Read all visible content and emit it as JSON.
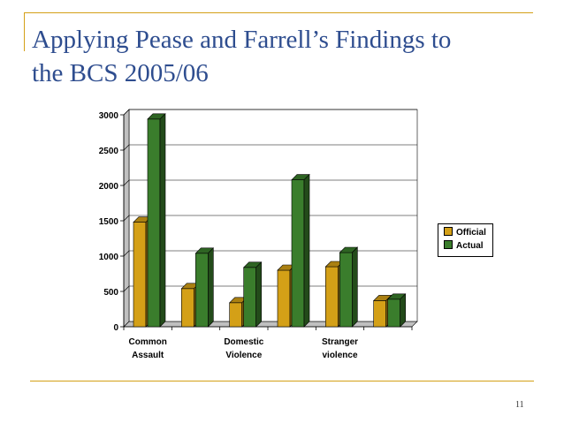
{
  "slide": {
    "title_line1": "Applying Pease and Farrell’s Findings to",
    "title_line2": "the BCS 2005/06",
    "page_number": "11"
  },
  "colors": {
    "accent_line": "#d4a017",
    "title": "#2e4d8f",
    "official": "#d4a017",
    "actual": "#3a7d2c"
  },
  "chart_data": {
    "type": "bar",
    "style": "3d-clustered",
    "categories": [
      "Common Assault",
      "",
      "Domestic Violence",
      "",
      "Stranger violence",
      ""
    ],
    "category_label_lines": [
      [
        "Common",
        "Assault"
      ],
      [],
      [
        "Domestic",
        "Violence"
      ],
      [],
      [
        "Stranger",
        "violence"
      ],
      []
    ],
    "series": [
      {
        "name": "Official",
        "values": [
          1480,
          540,
          340,
          800,
          850,
          370
        ]
      },
      {
        "name": "Actual",
        "values": [
          2940,
          1040,
          840,
          2080,
          1050,
          390
        ]
      }
    ],
    "ylim": [
      0,
      3000
    ],
    "yticks": [
      0,
      500,
      1000,
      1500,
      2000,
      2500,
      3000
    ],
    "grid": true,
    "legend_position": "right"
  }
}
